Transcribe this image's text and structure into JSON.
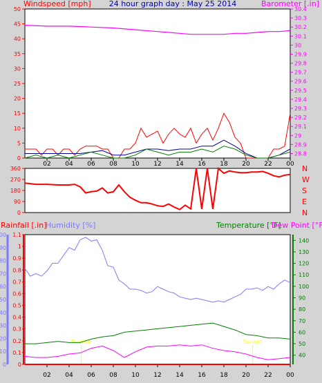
{
  "header": {
    "left_title": "Windspeed [mph]",
    "center_title": "24 hour graph day : May 25 2014",
    "right_title": "Barometer [.in]"
  },
  "colors": {
    "background": "#d4d4d4",
    "plot_bg": "#ffffff",
    "red": "#ff0000",
    "magenta": "#ff00ff",
    "green": "#008000",
    "navy": "#000099",
    "blue_light": "#7a7aff",
    "yellow": "#ffff00"
  },
  "chart_data": [
    {
      "type": "line",
      "panel": "wind-barometer",
      "title": "24 hour graph day : May 25 2014",
      "x_ticks": [
        "02",
        "04",
        "06",
        "08",
        "10",
        "12",
        "14",
        "16",
        "18",
        "20",
        "22",
        "00"
      ],
      "x_hours": [
        0,
        24
      ],
      "left_axis": {
        "label": "Windspeed [mph]",
        "ticks": [
          "0",
          "5",
          "10",
          "15",
          "20",
          "25",
          "30",
          "35",
          "40",
          "45",
          "50"
        ],
        "ylim": [
          0,
          50
        ]
      },
      "right_axis": {
        "label": "Barometer [.in]",
        "ticks": [
          "28.8",
          "28.9",
          "29",
          "29.1",
          "29.2",
          "29.3",
          "29.4",
          "29.5",
          "29.6",
          "29.7",
          "29.8",
          "29.9",
          "30",
          "30.1",
          "30.2",
          "30.3",
          "30.4"
        ],
        "ylim": [
          28.75,
          30.4
        ]
      },
      "series": [
        {
          "axis": "right",
          "color": "#ff00ff",
          "x": [
            0,
            2,
            4,
            6,
            8,
            10,
            12,
            14,
            15,
            16,
            17,
            18,
            19,
            20,
            21,
            22,
            23,
            24
          ],
          "y": [
            30.22,
            30.21,
            30.21,
            30.2,
            30.19,
            30.17,
            30.15,
            30.13,
            30.12,
            30.12,
            30.12,
            30.12,
            30.13,
            30.13,
            30.14,
            30.15,
            30.15,
            30.16
          ]
        },
        {
          "axis": "left",
          "color": "#ff0000",
          "x": [
            0,
            0.5,
            1,
            1.5,
            2,
            2.5,
            3,
            3.5,
            4,
            4.5,
            5,
            5.5,
            6,
            6.5,
            7,
            7.5,
            8,
            8.5,
            9,
            9.5,
            10,
            10.5,
            11,
            11.5,
            12,
            12.5,
            13,
            13.5,
            14,
            14.5,
            15,
            15.5,
            16,
            16.5,
            17,
            17.5,
            18,
            18.5,
            19,
            19.5,
            20,
            20.5,
            21,
            21.5,
            22,
            22.5,
            23,
            23.5,
            24
          ],
          "y": [
            3,
            3,
            3,
            1,
            3,
            3,
            1,
            3,
            3,
            1,
            3,
            4,
            4,
            4,
            3,
            3,
            0,
            0,
            3,
            3,
            5,
            10,
            7,
            8,
            9,
            5,
            8,
            10,
            8,
            7,
            10,
            5,
            8,
            10,
            6,
            10,
            15,
            12,
            7,
            5,
            0,
            0,
            0,
            0,
            0,
            3,
            3,
            4,
            15
          ]
        },
        {
          "axis": "left",
          "color": "#000099",
          "x": [
            0,
            1,
            2,
            3,
            4,
            5,
            6,
            7,
            8,
            9,
            10,
            11,
            12,
            13,
            14,
            15,
            16,
            17,
            18,
            19,
            20,
            21,
            22,
            23,
            24
          ],
          "y": [
            1.5,
            1.5,
            1.5,
            1.5,
            1.5,
            1.5,
            2,
            2.5,
            1,
            1,
            2,
            3,
            3,
            2.5,
            3,
            3,
            4,
            4,
            6,
            4,
            1.5,
            0,
            0,
            1,
            3
          ]
        },
        {
          "axis": "left",
          "color": "#008000",
          "x": [
            0,
            1,
            2,
            3,
            4,
            5,
            6,
            7,
            8,
            9,
            10,
            11,
            12,
            13,
            14,
            15,
            16,
            17,
            18,
            19,
            20,
            21,
            22,
            23,
            24
          ],
          "y": [
            0,
            1,
            0,
            1,
            0,
            1,
            2,
            1,
            0,
            0,
            1,
            3,
            2,
            1,
            2,
            2,
            3,
            2,
            4,
            3,
            1,
            0,
            0,
            1,
            2
          ]
        }
      ]
    },
    {
      "type": "scatter",
      "panel": "wind-direction",
      "ylim": [
        0,
        360
      ],
      "left_ticks": [
        "0",
        "90",
        "180",
        "270",
        "360"
      ],
      "right_labels": [
        "N",
        "W",
        "S",
        "E",
        "N"
      ],
      "series": [
        {
          "color": "#ff0000",
          "x": [
            0,
            1,
            2,
            3,
            4,
            4.5,
            5,
            5.5,
            6,
            6.5,
            7,
            7.5,
            8,
            8.5,
            9,
            9.5,
            10,
            10.5,
            11,
            11.5,
            12,
            12.5,
            13,
            13.5,
            14,
            14.5,
            15,
            15.5,
            16,
            16.5,
            17,
            17.5,
            18,
            18.5,
            19,
            19.5,
            20,
            20.5,
            21,
            21.5,
            22,
            22.5,
            23,
            23.5,
            24
          ],
          "y": [
            240,
            230,
            230,
            225,
            225,
            230,
            210,
            160,
            170,
            175,
            200,
            160,
            170,
            225,
            170,
            125,
            100,
            80,
            80,
            70,
            55,
            50,
            70,
            45,
            25,
            60,
            30,
            360,
            30,
            360,
            30,
            360,
            320,
            340,
            330,
            325,
            325,
            330,
            330,
            335,
            320,
            300,
            290,
            305,
            310
          ]
        }
      ]
    },
    {
      "type": "line",
      "panel": "rain-humidity-temperature",
      "labels": {
        "rainfall": "Rainfall [.in]",
        "humidity": "Humidity [%]",
        "temperature": "Temperature [°F]",
        "dewpoint": "Dew Point [°F]"
      },
      "humidity_axis": {
        "ticks": [
          "0",
          "10",
          "20",
          "30",
          "40",
          "50",
          "60",
          "70",
          "80",
          "90",
          "100"
        ],
        "ylim": [
          0,
          100
        ]
      },
      "rain_axis": {
        "ticks": [
          "0",
          "0.1",
          "0.2",
          "0.3",
          "0.4",
          "0.5",
          "0.6",
          "0.7",
          "0.8",
          "0.9",
          "1",
          "1.1"
        ],
        "ylim": [
          0,
          1.1
        ]
      },
      "temp_axis": {
        "ticks": [
          "40",
          "50",
          "60",
          "70",
          "80",
          "90",
          "100",
          "110",
          "120",
          "130",
          "140"
        ],
        "ylim": [
          32,
          145
        ]
      },
      "annotations": [
        "Sunrise",
        "Sunset"
      ],
      "series": [
        {
          "name": "Humidity",
          "axis": "humidity",
          "color": "#7a7aff",
          "x": [
            0,
            0.5,
            1,
            1.5,
            2,
            2.5,
            3,
            3.5,
            4,
            4.5,
            5,
            5.5,
            6,
            6.5,
            7,
            7.5,
            8,
            8.5,
            9,
            9.5,
            10,
            10.5,
            11,
            11.5,
            12,
            12.5,
            13,
            13.5,
            14,
            14.5,
            15,
            15.5,
            16,
            16.5,
            17,
            17.5,
            18,
            18.5,
            19,
            19.5,
            20,
            20.5,
            21,
            21.5,
            22,
            22.5,
            23,
            23.5,
            24
          ],
          "y": [
            74,
            68,
            70,
            68,
            72,
            78,
            78,
            84,
            90,
            88,
            96,
            98,
            95,
            96,
            88,
            76,
            75,
            65,
            62,
            58,
            58,
            57,
            55,
            56,
            60,
            58,
            56,
            55,
            52,
            51,
            50,
            51,
            50,
            49,
            48,
            49,
            48,
            50,
            52,
            54,
            58,
            58,
            59,
            57,
            60,
            58,
            62,
            65,
            63
          ]
        },
        {
          "name": "Temperature",
          "axis": "temp",
          "color": "#008000",
          "x": [
            0,
            1,
            2,
            3,
            4,
            5,
            6,
            7,
            8,
            9,
            10,
            11,
            12,
            13,
            14,
            15,
            16,
            17,
            18,
            19,
            20,
            21,
            22,
            23,
            24
          ],
          "y": [
            50,
            50,
            51,
            52,
            51,
            51,
            54,
            56,
            57,
            60,
            61,
            62,
            63,
            64,
            65,
            66,
            67,
            68,
            65,
            62,
            58,
            57,
            55,
            55,
            54
          ]
        },
        {
          "name": "Dew Point",
          "axis": "temp",
          "color": "#ff00ff",
          "x": [
            0,
            1,
            2,
            3,
            4,
            5,
            6,
            7,
            8,
            9,
            10,
            11,
            12,
            13,
            14,
            15,
            16,
            17,
            18,
            19,
            20,
            21,
            22,
            23,
            24
          ],
          "y": [
            39,
            38,
            38,
            39,
            41,
            42,
            46,
            48,
            44,
            38,
            43,
            47,
            48,
            48,
            49,
            48,
            49,
            46,
            44,
            43,
            41,
            38,
            36,
            37,
            38
          ]
        },
        {
          "name": "Rainfall",
          "axis": "rain",
          "color": "#ff0000",
          "x": [
            0,
            24
          ],
          "y": [
            0,
            0
          ]
        }
      ]
    }
  ]
}
